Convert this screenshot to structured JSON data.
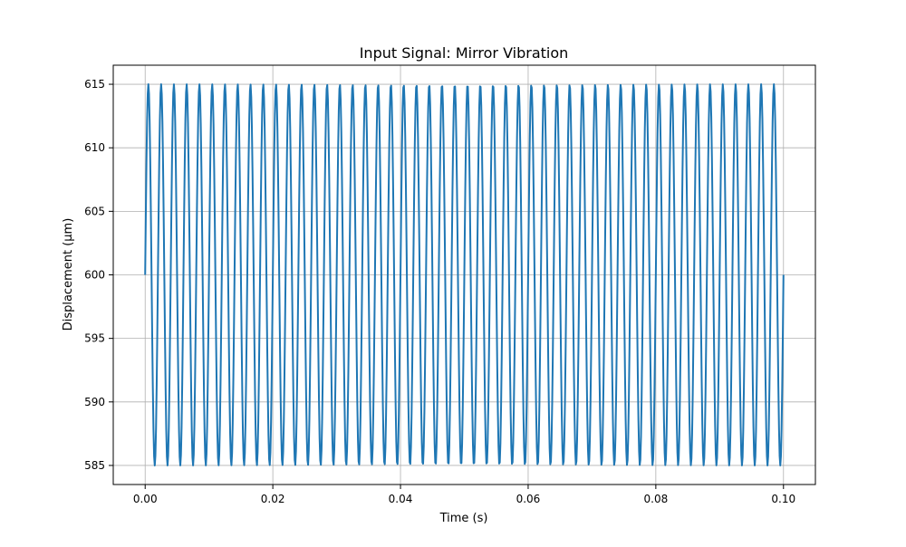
{
  "chart_data": {
    "type": "line",
    "title": "Input Signal: Mirror Vibration",
    "xlabel": "Time (s)",
    "ylabel": "Displacement (µm)",
    "xlim": [
      -0.005,
      0.105
    ],
    "ylim": [
      583.5,
      616.5
    ],
    "x_ticks": [
      0.0,
      0.02,
      0.04,
      0.06,
      0.08,
      0.1
    ],
    "x_tick_labels": [
      "0.00",
      "0.02",
      "0.04",
      "0.06",
      "0.08",
      "0.10"
    ],
    "y_ticks": [
      585,
      590,
      595,
      600,
      605,
      610,
      615
    ],
    "y_tick_labels": [
      "585",
      "590",
      "595",
      "600",
      "605",
      "610",
      "615"
    ],
    "grid": true,
    "legend": "none",
    "series": [
      {
        "color": "#1f77b4",
        "function": "sine",
        "offset": 600,
        "amplitude": 15,
        "frequency_hz": 500,
        "x_start": 0,
        "x_end": 0.1,
        "sample_count": 1000
      }
    ]
  }
}
